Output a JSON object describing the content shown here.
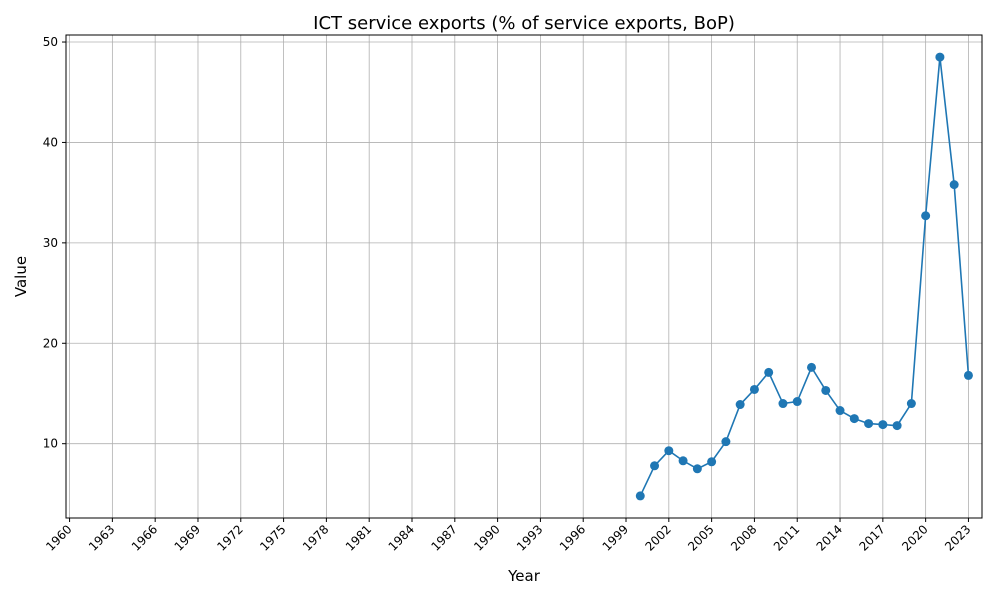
{
  "chart_data": {
    "type": "line",
    "title": "ICT service exports (% of service exports, BoP)",
    "xlabel": "Year",
    "ylabel": "Value",
    "xlim": [
      1960,
      2023
    ],
    "ylim": [
      2.6,
      50.7
    ],
    "xticks": [
      1960,
      1963,
      1966,
      1969,
      1972,
      1975,
      1978,
      1981,
      1984,
      1987,
      1990,
      1993,
      1996,
      1999,
      2002,
      2005,
      2008,
      2011,
      2014,
      2017,
      2020,
      2023
    ],
    "yticks": [
      10,
      20,
      30,
      40,
      50
    ],
    "grid": true,
    "line_color": "#1f77b4",
    "marker": "circle",
    "series": [
      {
        "x": [
          2000,
          2001,
          2002,
          2003,
          2004,
          2005,
          2006,
          2007,
          2008,
          2009,
          2010,
          2011,
          2012,
          2013,
          2014,
          2015,
          2016,
          2017,
          2018,
          2019,
          2020,
          2021,
          2022,
          2023
        ],
        "values": [
          4.8,
          7.8,
          9.3,
          8.3,
          7.5,
          8.2,
          10.2,
          13.9,
          15.4,
          17.1,
          14.0,
          14.2,
          17.6,
          15.3,
          13.3,
          12.5,
          12.0,
          11.9,
          11.8,
          14.0,
          32.7,
          48.5,
          35.8,
          16.8
        ]
      }
    ]
  }
}
